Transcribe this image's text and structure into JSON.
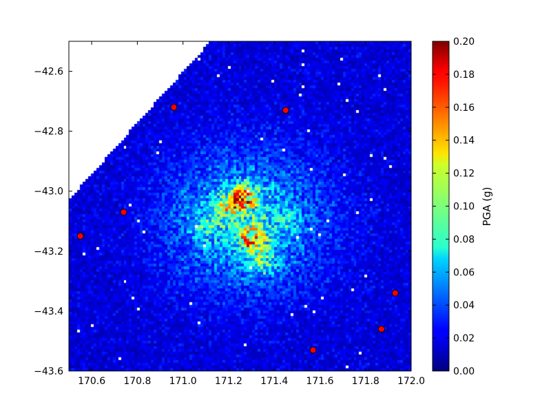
{
  "chart_data": {
    "type": "heatmap",
    "title": "",
    "xlabel": "",
    "ylabel": "",
    "xlim": [
      170.5,
      172.0
    ],
    "ylim": [
      -43.6,
      -42.5
    ],
    "x_ticks": [
      170.6,
      170.8,
      171.0,
      171.2,
      171.4,
      171.6,
      171.8,
      172.0
    ],
    "x_tick_labels": [
      "170.6",
      "170.8",
      "171.0",
      "171.2",
      "171.4",
      "171.6",
      "171.8",
      "172.0"
    ],
    "y_ticks": [
      -42.6,
      -42.8,
      -43.0,
      -43.2,
      -43.4,
      -43.6
    ],
    "y_tick_labels": [
      "−42.6",
      "−42.8",
      "−43.0",
      "−43.2",
      "−43.4",
      "−43.6"
    ],
    "colormap": "jet",
    "colorbar": {
      "label": "PGA (g)",
      "range": [
        0.0,
        0.2
      ],
      "ticks": [
        0.0,
        0.02,
        0.04,
        0.06,
        0.08,
        0.1,
        0.12,
        0.14,
        0.16,
        0.18,
        0.2
      ],
      "tick_labels": [
        "0.00",
        "0.02",
        "0.04",
        "0.06",
        "0.08",
        "0.10",
        "0.12",
        "0.14",
        "0.16",
        "0.18",
        "0.20"
      ]
    },
    "hotspots": [
      {
        "lon": 171.27,
        "lat": -43.02,
        "pga": 0.19
      },
      {
        "lon": 171.3,
        "lat": -43.16,
        "pga": 0.19
      },
      {
        "lon": 171.2,
        "lat": -43.05,
        "pga": 0.14
      },
      {
        "lon": 171.35,
        "lat": -43.24,
        "pga": 0.11
      },
      {
        "lon": 171.1,
        "lat": -43.12,
        "pga": 0.09
      },
      {
        "lon": 171.45,
        "lat": -43.1,
        "pga": 0.07
      }
    ],
    "stations": [
      {
        "lon": 170.96,
        "lat": -42.72
      },
      {
        "lon": 171.45,
        "lat": -42.73
      },
      {
        "lon": 170.74,
        "lat": -43.07
      },
      {
        "lon": 170.55,
        "lat": -43.15
      },
      {
        "lon": 171.93,
        "lat": -43.34
      },
      {
        "lon": 171.87,
        "lat": -43.46
      },
      {
        "lon": 171.57,
        "lat": -43.53
      }
    ]
  }
}
